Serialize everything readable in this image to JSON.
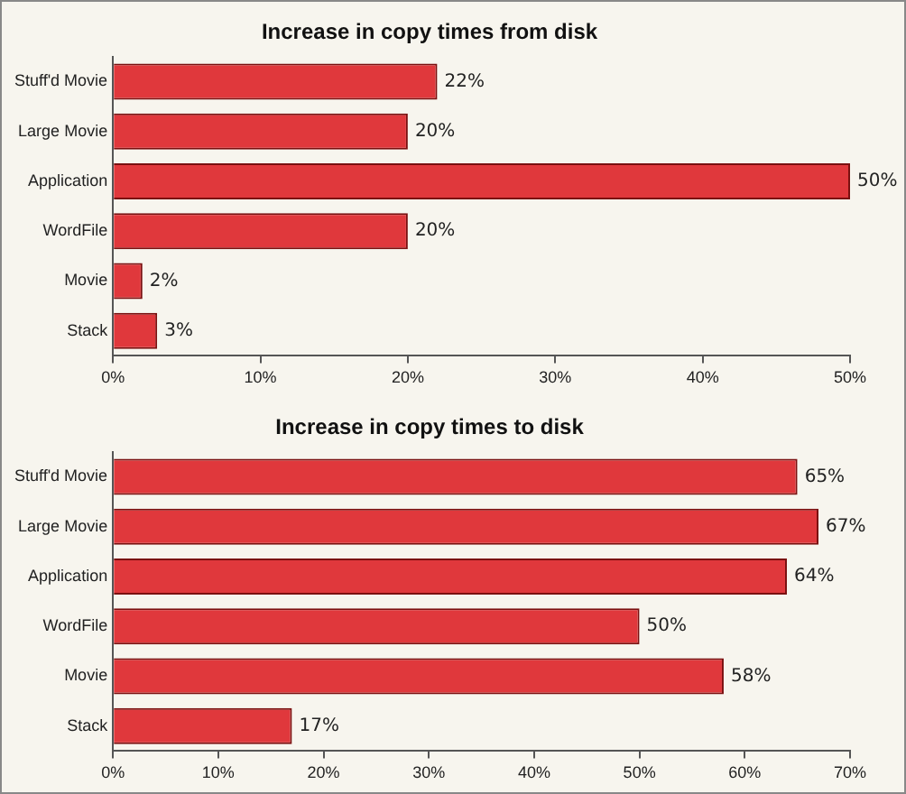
{
  "chart_data": [
    {
      "type": "bar",
      "orientation": "horizontal",
      "title": "Increase in copy times from disk",
      "categories": [
        "Stuff'd Movie",
        "Large Movie",
        "Application",
        "WordFile",
        "Movie",
        "Stack"
      ],
      "values": [
        22,
        20,
        50,
        20,
        2,
        3
      ],
      "value_labels": [
        "22%",
        "20%",
        "50%",
        "20%",
        "2%",
        "3%"
      ],
      "color": "#e0383c",
      "xlim": [
        0,
        50
      ],
      "xticks": [
        {
          "value": 0,
          "label": "0%"
        },
        {
          "value": 10,
          "label": "10%"
        },
        {
          "value": 20,
          "label": "20%"
        },
        {
          "value": 30,
          "label": "30%"
        },
        {
          "value": 40,
          "label": "40%"
        },
        {
          "value": 50,
          "label": "50%"
        }
      ],
      "grid": false,
      "legend": false
    },
    {
      "type": "bar",
      "orientation": "horizontal",
      "title": "Increase in copy times to disk",
      "categories": [
        "Stuff'd Movie",
        "Large Movie",
        "Application",
        "WordFile",
        "Movie",
        "Stack"
      ],
      "values": [
        65,
        67,
        64,
        50,
        58,
        17
      ],
      "value_labels": [
        "65%",
        "67%",
        "64%",
        "50%",
        "58%",
        "17%"
      ],
      "color": "#e0383c",
      "xlim": [
        0,
        70
      ],
      "xticks": [
        {
          "value": 0,
          "label": "0%"
        },
        {
          "value": 10,
          "label": "10%"
        },
        {
          "value": 20,
          "label": "20%"
        },
        {
          "value": 30,
          "label": "30%"
        },
        {
          "value": 40,
          "label": "40%"
        },
        {
          "value": 50,
          "label": "50%"
        },
        {
          "value": 60,
          "label": "60%"
        },
        {
          "value": 70,
          "label": "70%"
        }
      ],
      "grid": false,
      "legend": false
    }
  ]
}
